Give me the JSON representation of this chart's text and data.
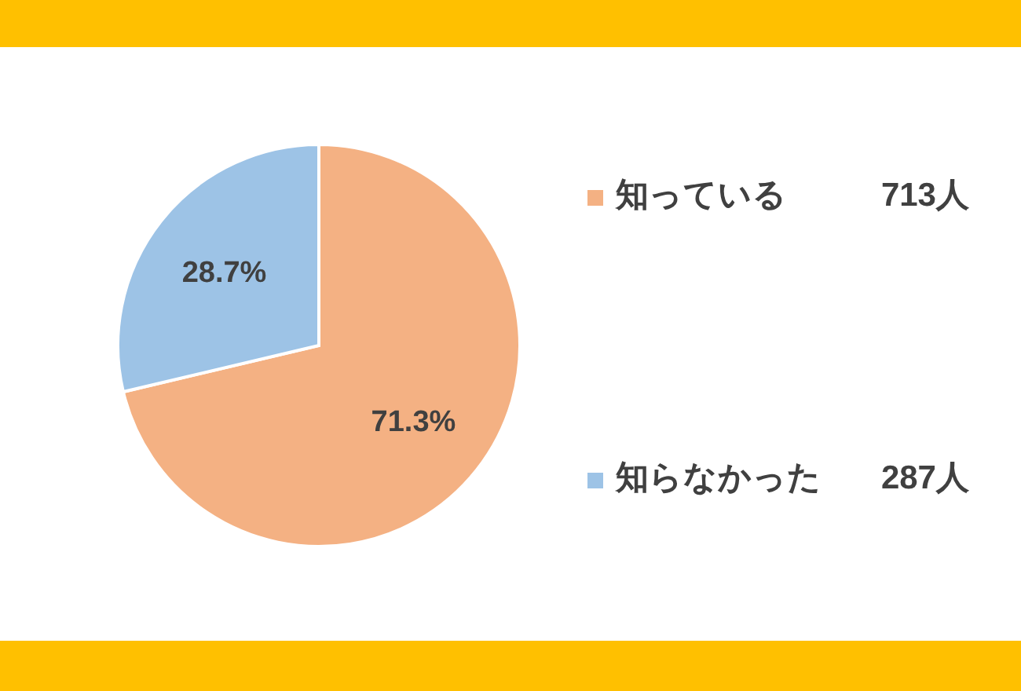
{
  "chart_data": {
    "type": "pie",
    "categories": [
      "知っている",
      "知らなかった"
    ],
    "values": [
      71.3,
      28.7
    ],
    "colors": [
      "#f4b183",
      "#9dc3e6"
    ],
    "value_labels": [
      "71.3%",
      "28.7%"
    ],
    "annotations": [
      "713人",
      "287人"
    ],
    "legend": "right"
  }
}
